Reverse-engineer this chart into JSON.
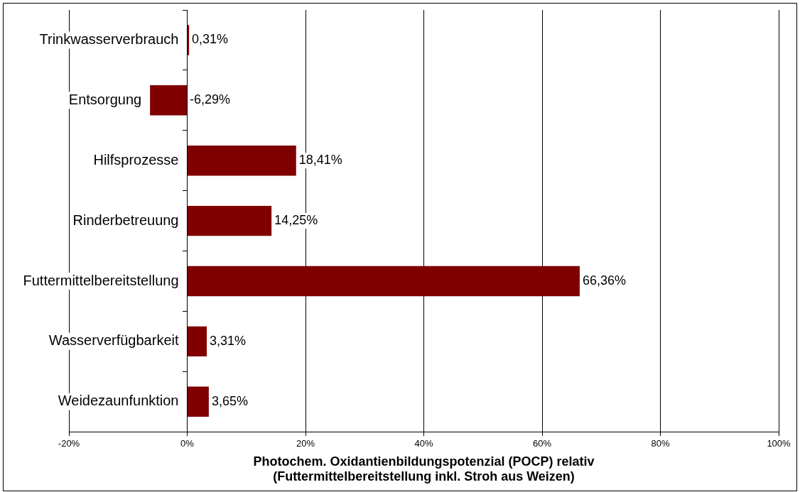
{
  "chart_data": {
    "type": "bar",
    "orientation": "horizontal",
    "xlabel": "Photochem. Oxidantienbildungspotenzial (POCP) relativ\n(Futtermittelbereitstellung inkl. Stroh aus Weizen)",
    "categories": [
      "Trinkwasserverbrauch",
      "Entsorgung",
      "Hilfsprozesse",
      "Rinderbetreuung",
      "Futtermittelbereitstellung",
      "Wasserverfügbarkeit",
      "Weidezaunfunktion"
    ],
    "values": [
      0.31,
      -6.29,
      18.41,
      14.25,
      66.36,
      3.31,
      3.65
    ],
    "value_labels": [
      "0,31%",
      "-6,29%",
      "18,41%",
      "14,25%",
      "66,36%",
      "3,31%",
      "3,65%"
    ],
    "color": "#800000",
    "xlim": [
      -20,
      100
    ],
    "xticks": [
      {
        "value": -20,
        "label": "-20%"
      },
      {
        "value": 0,
        "label": "0%"
      },
      {
        "value": 20,
        "label": "20%"
      },
      {
        "value": 40,
        "label": "40%"
      },
      {
        "value": 60,
        "label": "60%"
      },
      {
        "value": 80,
        "label": "80%"
      },
      {
        "value": 100,
        "label": "100%"
      }
    ],
    "grid": "x",
    "legend": false
  }
}
